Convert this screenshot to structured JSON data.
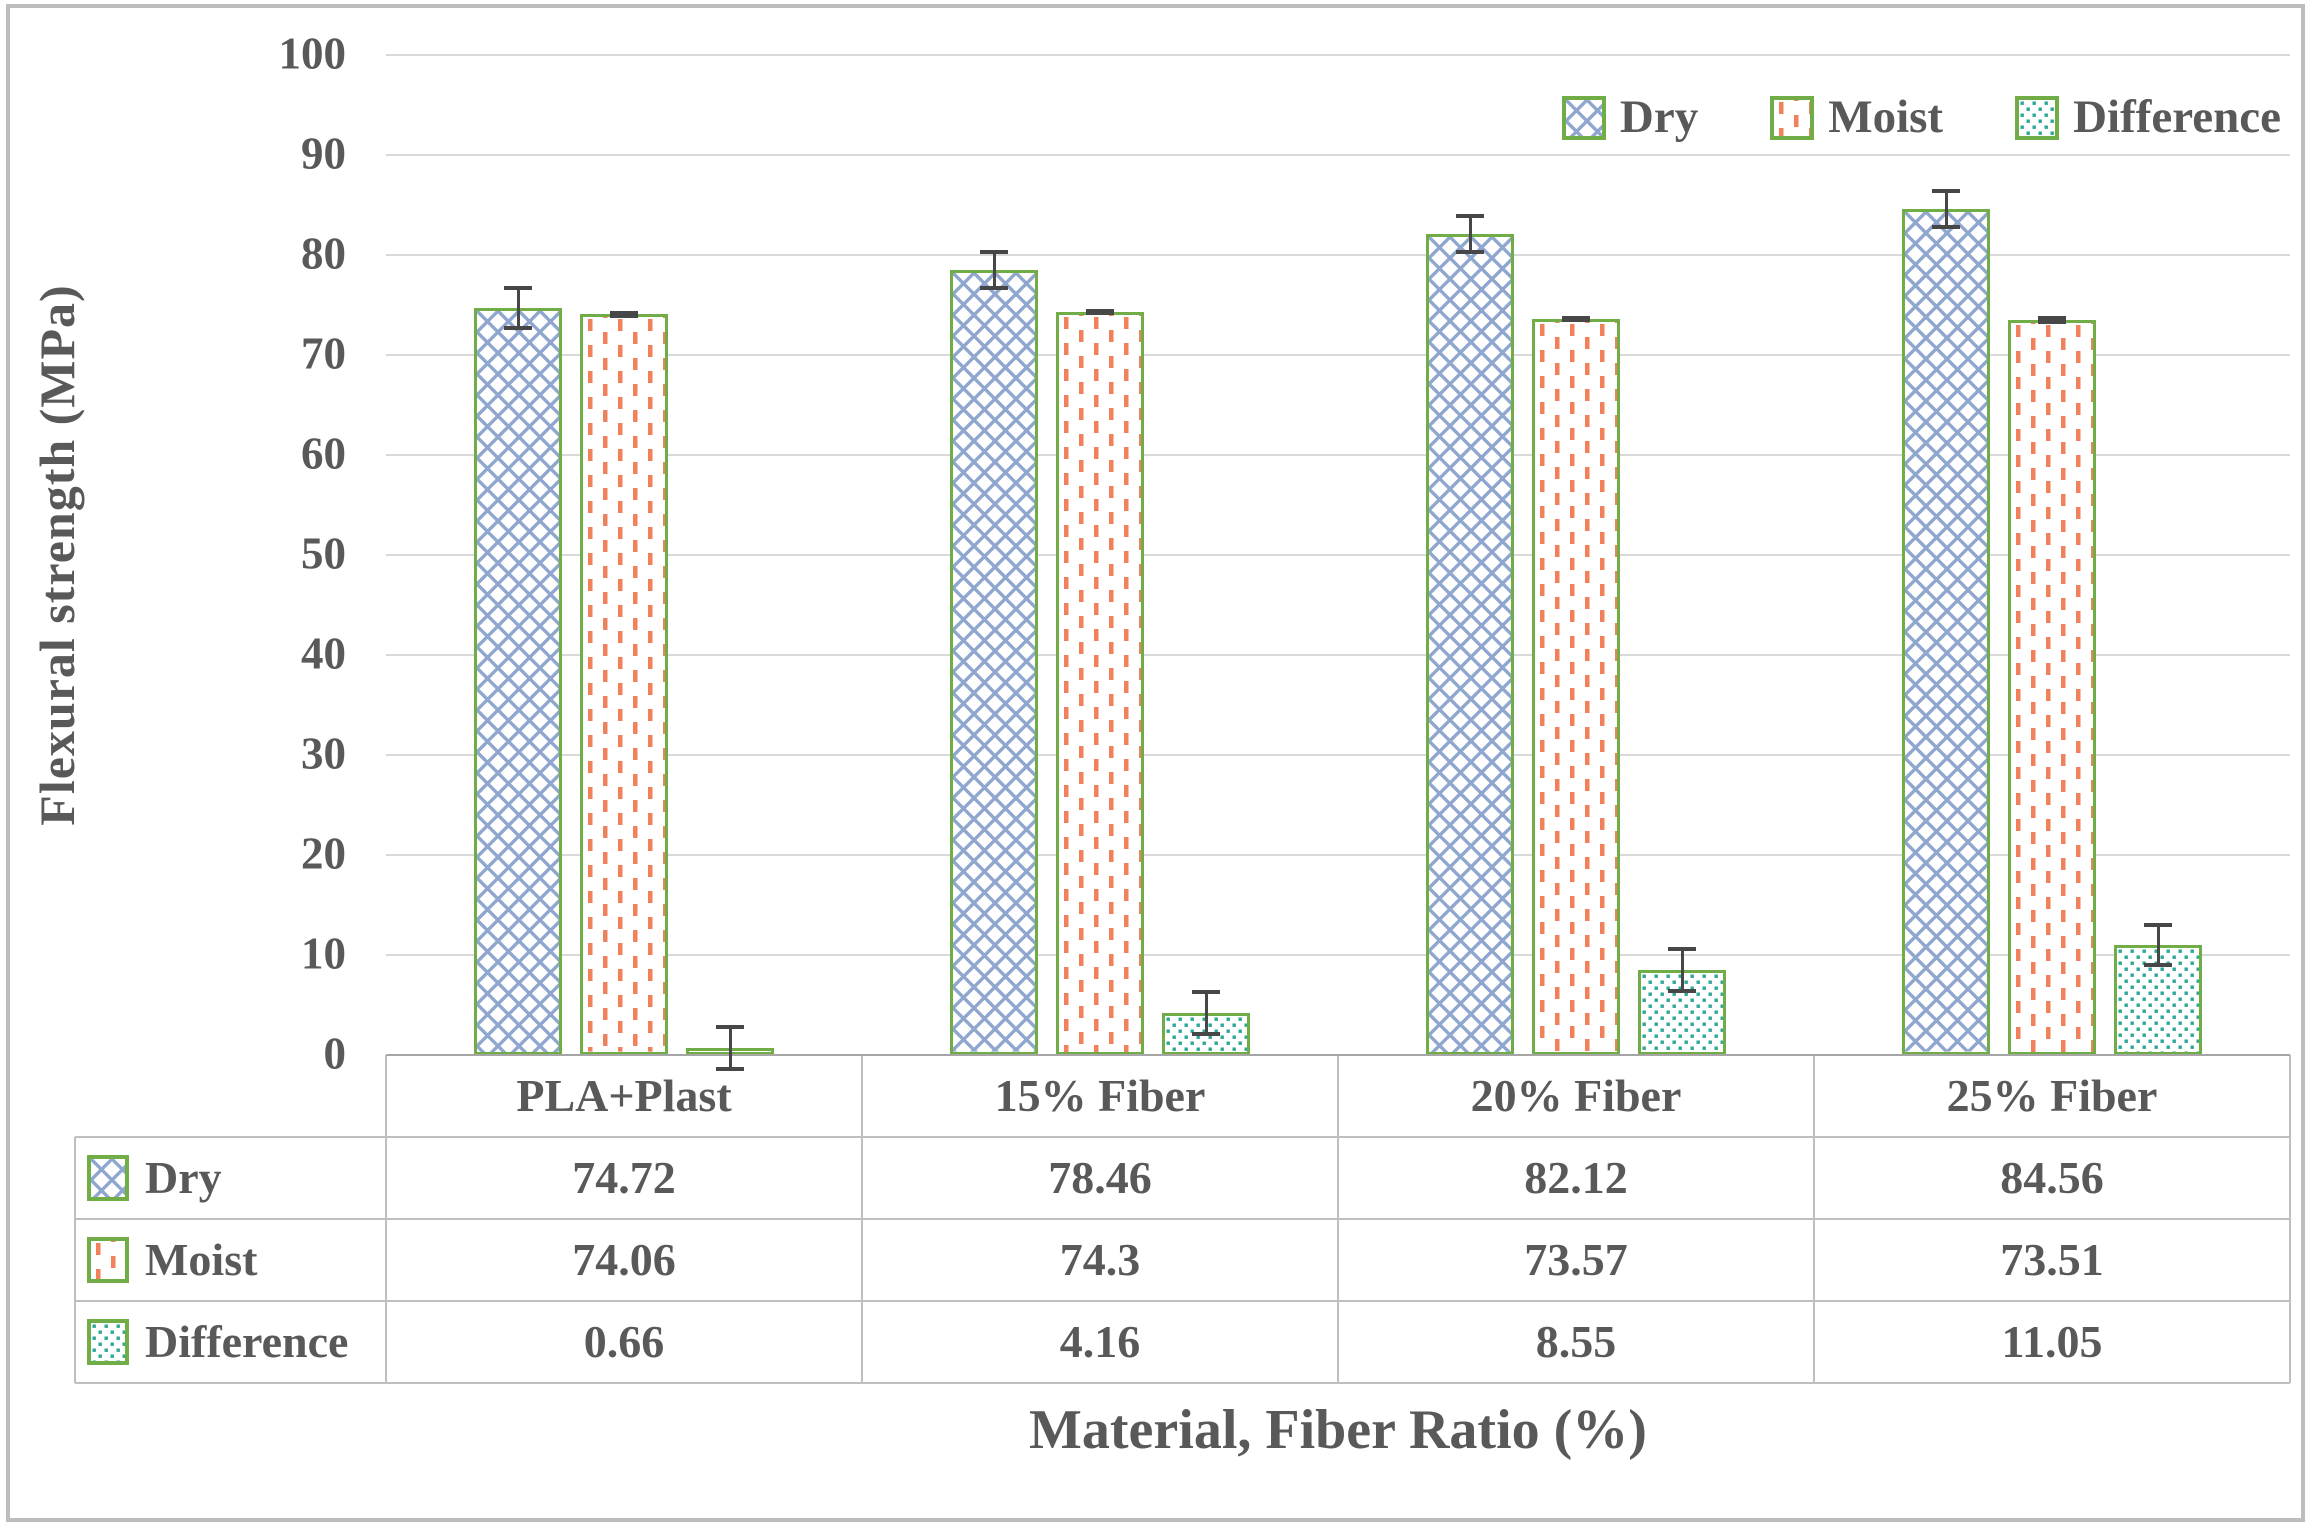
{
  "chart_data": {
    "type": "bar",
    "title": "",
    "ylabel": "Flexural strength (MPa)",
    "xlabel": "Material, Fiber Ratio (%)",
    "ylim": [
      0,
      100
    ],
    "ytick_step": 10,
    "grid": true,
    "legend_position": "top-right",
    "show_data_table": true,
    "categories": [
      "PLA+Plast",
      "15% Fiber",
      "20% Fiber",
      "25% Fiber"
    ],
    "series": [
      {
        "name": "Dry",
        "values": [
          74.72,
          78.46,
          82.12,
          84.56
        ],
        "errors": [
          2.2,
          2.0,
          2.0,
          2.0
        ],
        "pattern": "blue-crosshatch",
        "pattern_color": "#8fa6cf"
      },
      {
        "name": "Moist",
        "values": [
          74.06,
          74.3,
          73.57,
          73.51
        ],
        "errors": [
          0.35,
          0.3,
          0.3,
          0.4
        ],
        "pattern": "orange-dash",
        "pattern_color": "#f0815a"
      },
      {
        "name": "Difference",
        "values": [
          0.66,
          4.16,
          8.55,
          11.05
        ],
        "errors": [
          2.3,
          2.3,
          2.3,
          2.2
        ],
        "pattern": "teal-dots",
        "pattern_color": "#2aa797"
      }
    ],
    "colors": {
      "bar_border": "#70ad47",
      "error_bar": "#474747",
      "gridline": "#d9d9d9",
      "axis_line": "#a6a6a6",
      "table_line": "#bfbfbf",
      "text": "#595959",
      "frame_border": "#bdbdbd"
    }
  }
}
